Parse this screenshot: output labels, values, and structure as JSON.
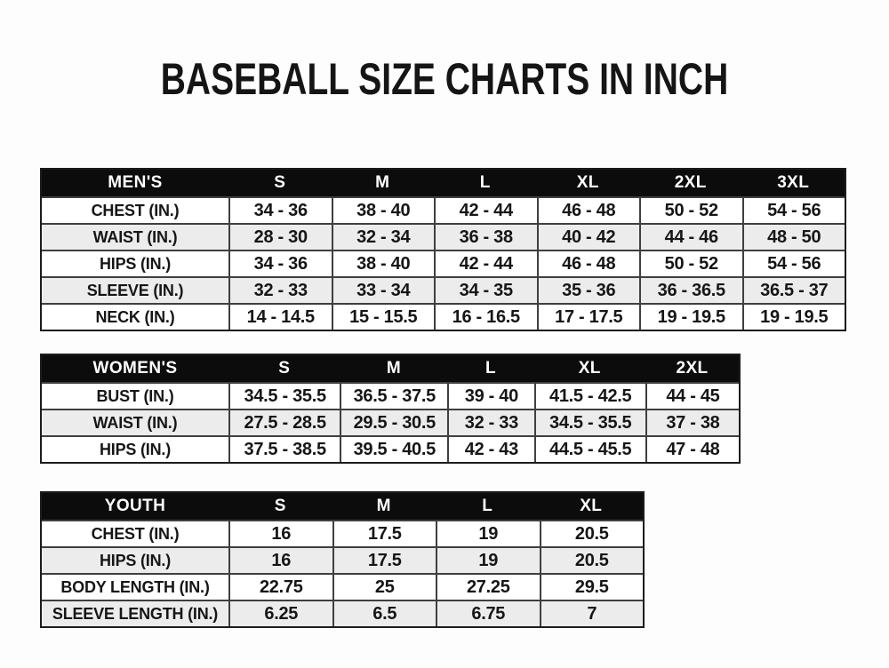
{
  "page_title": "BASEBALL SIZE CHARTS IN INCH",
  "colors": {
    "header_bg": "#0c0c0c",
    "header_text": "#ffffff",
    "row_stripe": "#ececec",
    "border": "#1c1c1c",
    "inner_border": "#3f3f3f",
    "text": "#161616",
    "background": "#fdfdfd"
  },
  "tables": {
    "mens": {
      "title": "MEN'S",
      "sizes": [
        "S",
        "M",
        "L",
        "XL",
        "2XL",
        "3XL"
      ],
      "rows": [
        {
          "label": "CHEST (IN.)",
          "values": [
            "34 - 36",
            "38 - 40",
            "42 - 44",
            "46 - 48",
            "50 - 52",
            "54 - 56"
          ]
        },
        {
          "label": "WAIST (IN.)",
          "values": [
            "28 - 30",
            "32 - 34",
            "36 - 38",
            "40 - 42",
            "44 - 46",
            "48 - 50"
          ]
        },
        {
          "label": "HIPS (IN.)",
          "values": [
            "34 - 36",
            "38 - 40",
            "42 - 44",
            "46 - 48",
            "50 - 52",
            "54 - 56"
          ]
        },
        {
          "label": "SLEEVE (IN.)",
          "values": [
            "32 - 33",
            "33 - 34",
            "34 - 35",
            "35 - 36",
            "36 - 36.5",
            "36.5 - 37"
          ]
        },
        {
          "label": "NECK (IN.)",
          "values": [
            "14 - 14.5",
            "15 - 15.5",
            "16 - 16.5",
            "17 - 17.5",
            "19 - 19.5",
            "19 - 19.5"
          ]
        }
      ]
    },
    "womens": {
      "title": "WOMEN'S",
      "sizes": [
        "S",
        "M",
        "L",
        "XL",
        "2XL"
      ],
      "rows": [
        {
          "label": "BUST (IN.)",
          "values": [
            "34.5 - 35.5",
            "36.5 - 37.5",
            "39 - 40",
            "41.5 - 42.5",
            "44 - 45"
          ]
        },
        {
          "label": "WAIST (IN.)",
          "values": [
            "27.5 - 28.5",
            "29.5 - 30.5",
            "32 - 33",
            "34.5 - 35.5",
            "37 - 38"
          ]
        },
        {
          "label": "HIPS (IN.)",
          "values": [
            "37.5 - 38.5",
            "39.5 - 40.5",
            "42 - 43",
            "44.5 - 45.5",
            "47 - 48"
          ]
        }
      ]
    },
    "youth": {
      "title": "YOUTH",
      "sizes": [
        "S",
        "M",
        "L",
        "XL"
      ],
      "rows": [
        {
          "label": "CHEST (IN.)",
          "values": [
            "16",
            "17.5",
            "19",
            "20.5"
          ]
        },
        {
          "label": "HIPS (IN.)",
          "values": [
            "16",
            "17.5",
            "19",
            "20.5"
          ]
        },
        {
          "label": "BODY LENGTH (IN.)",
          "values": [
            "22.75",
            "25",
            "27.25",
            "29.5"
          ]
        },
        {
          "label": "SLEEVE LENGTH (IN.)",
          "values": [
            "6.25",
            "6.5",
            "6.75",
            "7"
          ]
        }
      ]
    }
  }
}
